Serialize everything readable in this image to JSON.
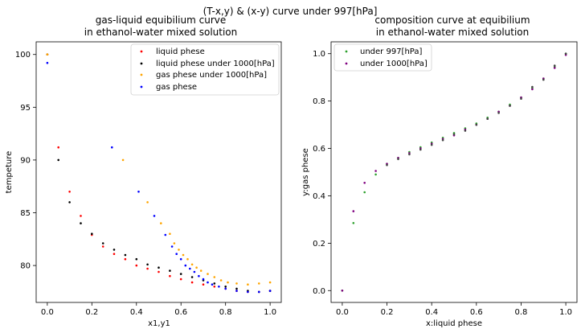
{
  "chart_data": {
    "suptitle": "(T-x,y) & (x-y) curve under 997[hPa]",
    "charts": [
      {
        "type": "scatter",
        "title_line1": "gas-liquid equibilium curve",
        "title_line2": "in ethanol-water mixed solution",
        "xlabel": "x1,y1",
        "ylabel": "tempeture",
        "xlim": [
          -0.05,
          1.05
        ],
        "ylim": [
          76.5,
          101.2
        ],
        "xticks": [
          0.0,
          0.2,
          0.4,
          0.6,
          0.8,
          1.0
        ],
        "yticks": [
          80,
          85,
          90,
          95,
          100
        ],
        "xtick_labels": [
          "0.0",
          "0.2",
          "0.4",
          "0.6",
          "0.8",
          "1.0"
        ],
        "ytick_labels": [
          "80",
          "85",
          "90",
          "95",
          "100"
        ],
        "legend_loc": "upper right",
        "series": [
          {
            "name": "liquid phese",
            "color": "#ff0000",
            "x": [
              0.0,
              0.05,
              0.1,
              0.15,
              0.2,
              0.25,
              0.3,
              0.35,
              0.4,
              0.45,
              0.5,
              0.55,
              0.6,
              0.65,
              0.7,
              0.75,
              0.8,
              0.85,
              0.9,
              0.95,
              1.0
            ],
            "y": [
              100.0,
              91.2,
              87.0,
              84.7,
              82.9,
              81.8,
              81.1,
              80.6,
              80.0,
              79.7,
              79.4,
              79.0,
              78.7,
              78.4,
              78.2,
              78.0,
              77.8,
              77.6,
              77.5,
              77.5,
              77.6
            ]
          },
          {
            "name": "liquid phese under 1000[hPa]",
            "color": "#000000",
            "x": [
              0.0,
              0.05,
              0.1,
              0.15,
              0.2,
              0.25,
              0.3,
              0.35,
              0.4,
              0.45,
              0.5,
              0.55,
              0.6,
              0.65,
              0.7,
              0.75,
              0.8,
              0.85,
              0.9,
              0.95,
              1.0
            ],
            "y": [
              100.0,
              90.0,
              86.0,
              84.0,
              83.0,
              82.1,
              81.5,
              81.0,
              80.6,
              80.1,
              79.8,
              79.5,
              79.2,
              78.9,
              78.6,
              78.3,
              78.0,
              77.8,
              77.6,
              77.5,
              77.6
            ]
          },
          {
            "name": "gas phese under 1000[hPa]",
            "color": "#ffa500",
            "x": [
              0.0,
              0.34,
              0.45,
              0.51,
              0.55,
              0.57,
              0.59,
              0.61,
              0.63,
              0.65,
              0.67,
              0.69,
              0.72,
              0.75,
              0.78,
              0.81,
              0.85,
              0.9,
              0.95,
              1.0
            ],
            "y": [
              100.0,
              90.0,
              86.0,
              84.0,
              83.0,
              82.1,
              81.5,
              81.0,
              80.6,
              80.1,
              79.8,
              79.5,
              79.2,
              78.9,
              78.6,
              78.4,
              78.3,
              78.2,
              78.3,
              78.4
            ]
          },
          {
            "name": "gas phese",
            "color": "#0000ff",
            "x": [
              0.0,
              0.29,
              0.41,
              0.48,
              0.53,
              0.56,
              0.58,
              0.6,
              0.62,
              0.64,
              0.66,
              0.68,
              0.7,
              0.72,
              0.74,
              0.77,
              0.8,
              0.85,
              0.9,
              0.95,
              1.0
            ],
            "y": [
              99.2,
              91.2,
              87.0,
              84.7,
              82.9,
              81.8,
              81.1,
              80.6,
              80.0,
              79.7,
              79.4,
              79.0,
              78.7,
              78.4,
              78.2,
              78.0,
              77.8,
              77.6,
              77.5,
              77.5,
              77.6
            ]
          }
        ]
      },
      {
        "type": "scatter",
        "title_line1": "composition curve at equibilium",
        "title_line2": "in ethanol-water mixed solution",
        "xlabel": "x:liquid phese",
        "ylabel": "y:gas phese",
        "xlim": [
          -0.05,
          1.05
        ],
        "ylim": [
          -0.05,
          1.05
        ],
        "xticks": [
          0.0,
          0.2,
          0.4,
          0.6,
          0.8,
          1.0
        ],
        "yticks": [
          0.0,
          0.2,
          0.4,
          0.6,
          0.8,
          1.0
        ],
        "xtick_labels": [
          "0.0",
          "0.2",
          "0.4",
          "0.6",
          "0.8",
          "1.0"
        ],
        "ytick_labels": [
          "0.0",
          "0.2",
          "0.4",
          "0.6",
          "0.8",
          "1.0"
        ],
        "legend_loc": "upper left",
        "series": [
          {
            "name": "under 997[hPa]",
            "color": "#2ca02c",
            "x": [
              0.0,
              0.05,
              0.1,
              0.15,
              0.2,
              0.25,
              0.3,
              0.35,
              0.4,
              0.45,
              0.5,
              0.55,
              0.6,
              0.65,
              0.7,
              0.75,
              0.8,
              0.85,
              0.9,
              0.95,
              1.0
            ],
            "y": [
              0.0,
              0.285,
              0.415,
              0.49,
              0.535,
              0.56,
              0.585,
              0.605,
              0.625,
              0.645,
              0.665,
              0.685,
              0.705,
              0.73,
              0.755,
              0.785,
              0.815,
              0.855,
              0.895,
              0.945,
              1.0
            ]
          },
          {
            "name": "under 1000[hPa]",
            "color": "#800080",
            "x": [
              0.0,
              0.05,
              0.1,
              0.15,
              0.2,
              0.25,
              0.3,
              0.35,
              0.4,
              0.45,
              0.5,
              0.55,
              0.6,
              0.65,
              0.7,
              0.75,
              0.8,
              0.85,
              0.9,
              0.95,
              1.0
            ],
            "y": [
              0.0,
              0.335,
              0.455,
              0.505,
              0.535,
              0.56,
              0.58,
              0.6,
              0.62,
              0.64,
              0.655,
              0.68,
              0.7,
              0.725,
              0.755,
              0.78,
              0.815,
              0.85,
              0.895,
              0.94,
              0.995
            ]
          },
          {
            "name": "",
            "color": "#444444",
            "x": [
              0.2,
              0.25,
              0.3,
              0.35,
              0.4,
              0.45,
              0.5,
              0.55,
              0.6,
              0.65,
              0.7,
              0.75,
              0.8,
              0.85,
              0.9,
              0.95,
              1.0
            ],
            "y": [
              0.53,
              0.555,
              0.575,
              0.595,
              0.615,
              0.635,
              0.66,
              0.675,
              0.7,
              0.725,
              0.75,
              0.78,
              0.81,
              0.86,
              0.89,
              0.95,
              1.0
            ]
          }
        ]
      }
    ]
  }
}
